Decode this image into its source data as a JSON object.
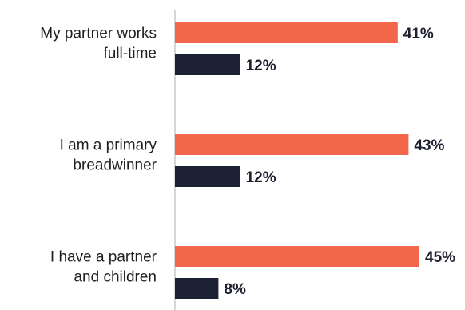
{
  "colors": {
    "series_a": "#f26649",
    "series_b": "#1c2133",
    "axis": "#c8c8c8",
    "text": "#1f1f1f"
  },
  "chart_data": {
    "type": "bar",
    "orientation": "horizontal",
    "categories": [
      [
        "My partner works",
        "full-time"
      ],
      [
        "I am a primary",
        "breadwinner"
      ],
      [
        "I have a partner",
        "and children"
      ]
    ],
    "series": [
      {
        "values": [
          41,
          43,
          45
        ],
        "labels": [
          "41%",
          "43%",
          "45%"
        ],
        "color": "#f26649"
      },
      {
        "values": [
          12,
          12,
          8
        ],
        "labels": [
          "12%",
          "12%",
          "8%"
        ],
        "color": "#1c2133"
      }
    ],
    "title": "",
    "xlabel": "",
    "ylabel": "",
    "grid": false,
    "legend": "none"
  }
}
